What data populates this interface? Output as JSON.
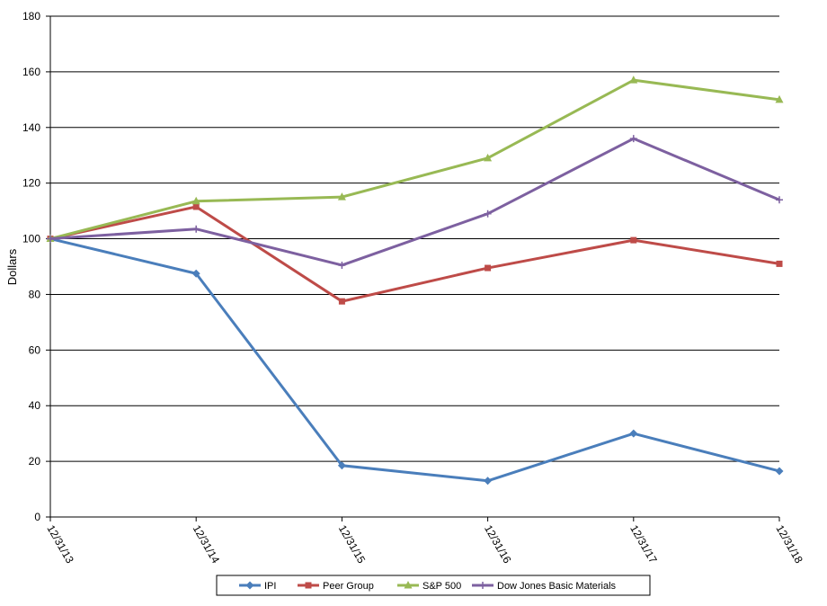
{
  "chart_data": {
    "type": "line",
    "title": "",
    "xlabel": "",
    "ylabel": "Dollars",
    "categories": [
      "12/31/13",
      "12/31/14",
      "12/31/15",
      "12/31/16",
      "12/31/17",
      "12/31/18"
    ],
    "ylim": [
      0,
      180
    ],
    "yticks": [
      0,
      20,
      40,
      60,
      80,
      100,
      120,
      140,
      160,
      180
    ],
    "grid": true,
    "legend_position": "bottom",
    "series": [
      {
        "name": "IPI",
        "color": "#4A7EBB",
        "marker": "diamond",
        "values": [
          100,
          87.5,
          18.5,
          13,
          30,
          16.5
        ]
      },
      {
        "name": "Peer Group",
        "color": "#BE4B48",
        "marker": "square",
        "values": [
          100,
          111.5,
          77.5,
          89.5,
          99.5,
          91
        ]
      },
      {
        "name": "S&P 500",
        "color": "#98B954",
        "marker": "triangle",
        "values": [
          100,
          113.5,
          115,
          129,
          157,
          150
        ]
      },
      {
        "name": "Dow Jones Basic Materials",
        "color": "#7D60A0",
        "marker": "plus",
        "values": [
          100,
          103.5,
          90.5,
          109,
          136,
          114
        ]
      }
    ]
  }
}
